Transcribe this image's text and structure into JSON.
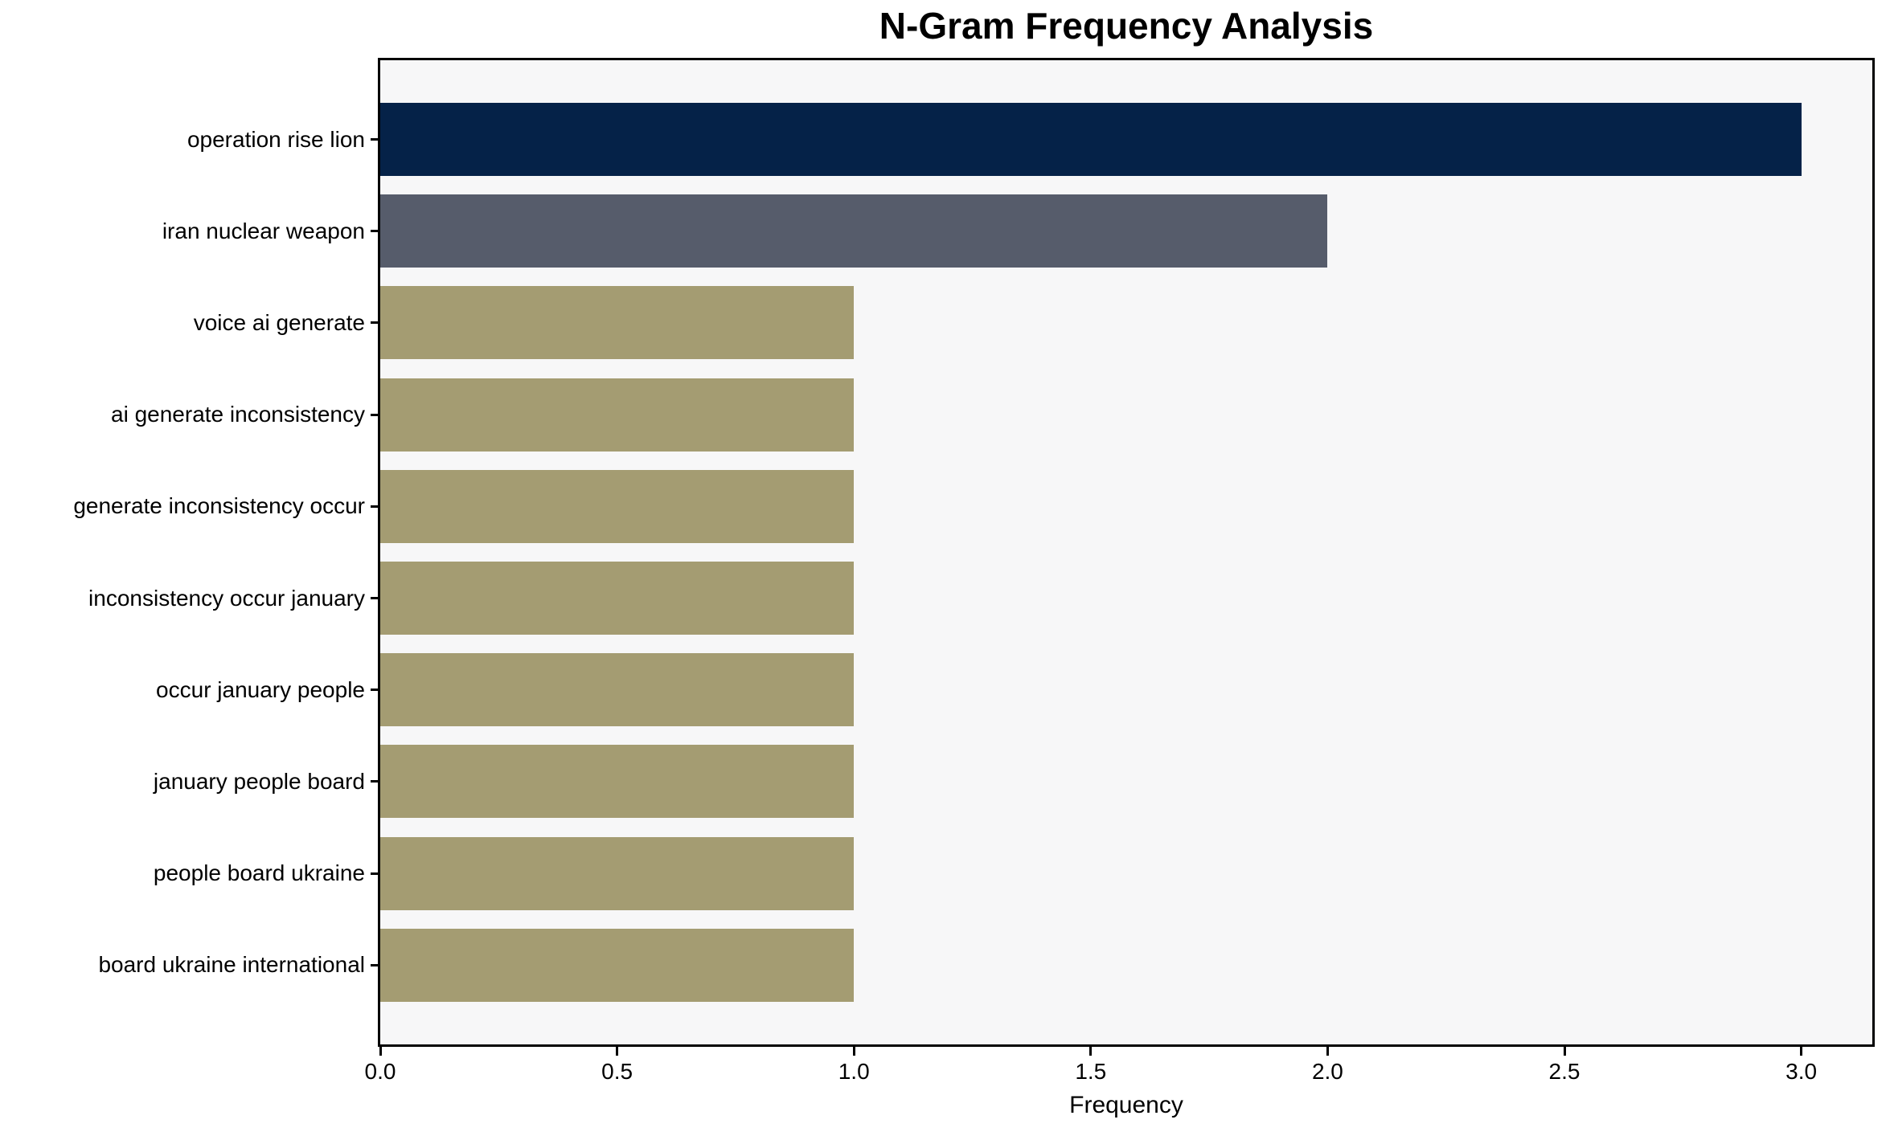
{
  "chart_data": {
    "type": "bar",
    "orientation": "horizontal",
    "title": "N-Gram Frequency Analysis",
    "xlabel": "Frequency",
    "ylabel": "",
    "categories": [
      "operation rise lion",
      "iran nuclear weapon",
      "voice ai generate",
      "ai generate inconsistency",
      "generate inconsistency occur",
      "inconsistency occur january",
      "occur january people",
      "january people board",
      "people board ukraine",
      "board ukraine international"
    ],
    "values": [
      3,
      2,
      1,
      1,
      1,
      1,
      1,
      1,
      1,
      1
    ],
    "bar_colors": [
      "#052248",
      "#565c6b",
      "#a49c72",
      "#a49c72",
      "#a49c72",
      "#a49c72",
      "#a49c72",
      "#a49c72",
      "#a49c72",
      "#a49c72"
    ],
    "xlim": [
      0,
      3.15
    ],
    "xticks": [
      0.0,
      0.5,
      1.0,
      1.5,
      2.0,
      2.5,
      3.0
    ],
    "xtick_labels": [
      "0.0",
      "0.5",
      "1.0",
      "1.5",
      "2.0",
      "2.5",
      "3.0"
    ],
    "grid": false,
    "legend": null,
    "plot_background": "#f7f7f8",
    "figure_background": "#ffffff",
    "text_color": "#000000"
  }
}
